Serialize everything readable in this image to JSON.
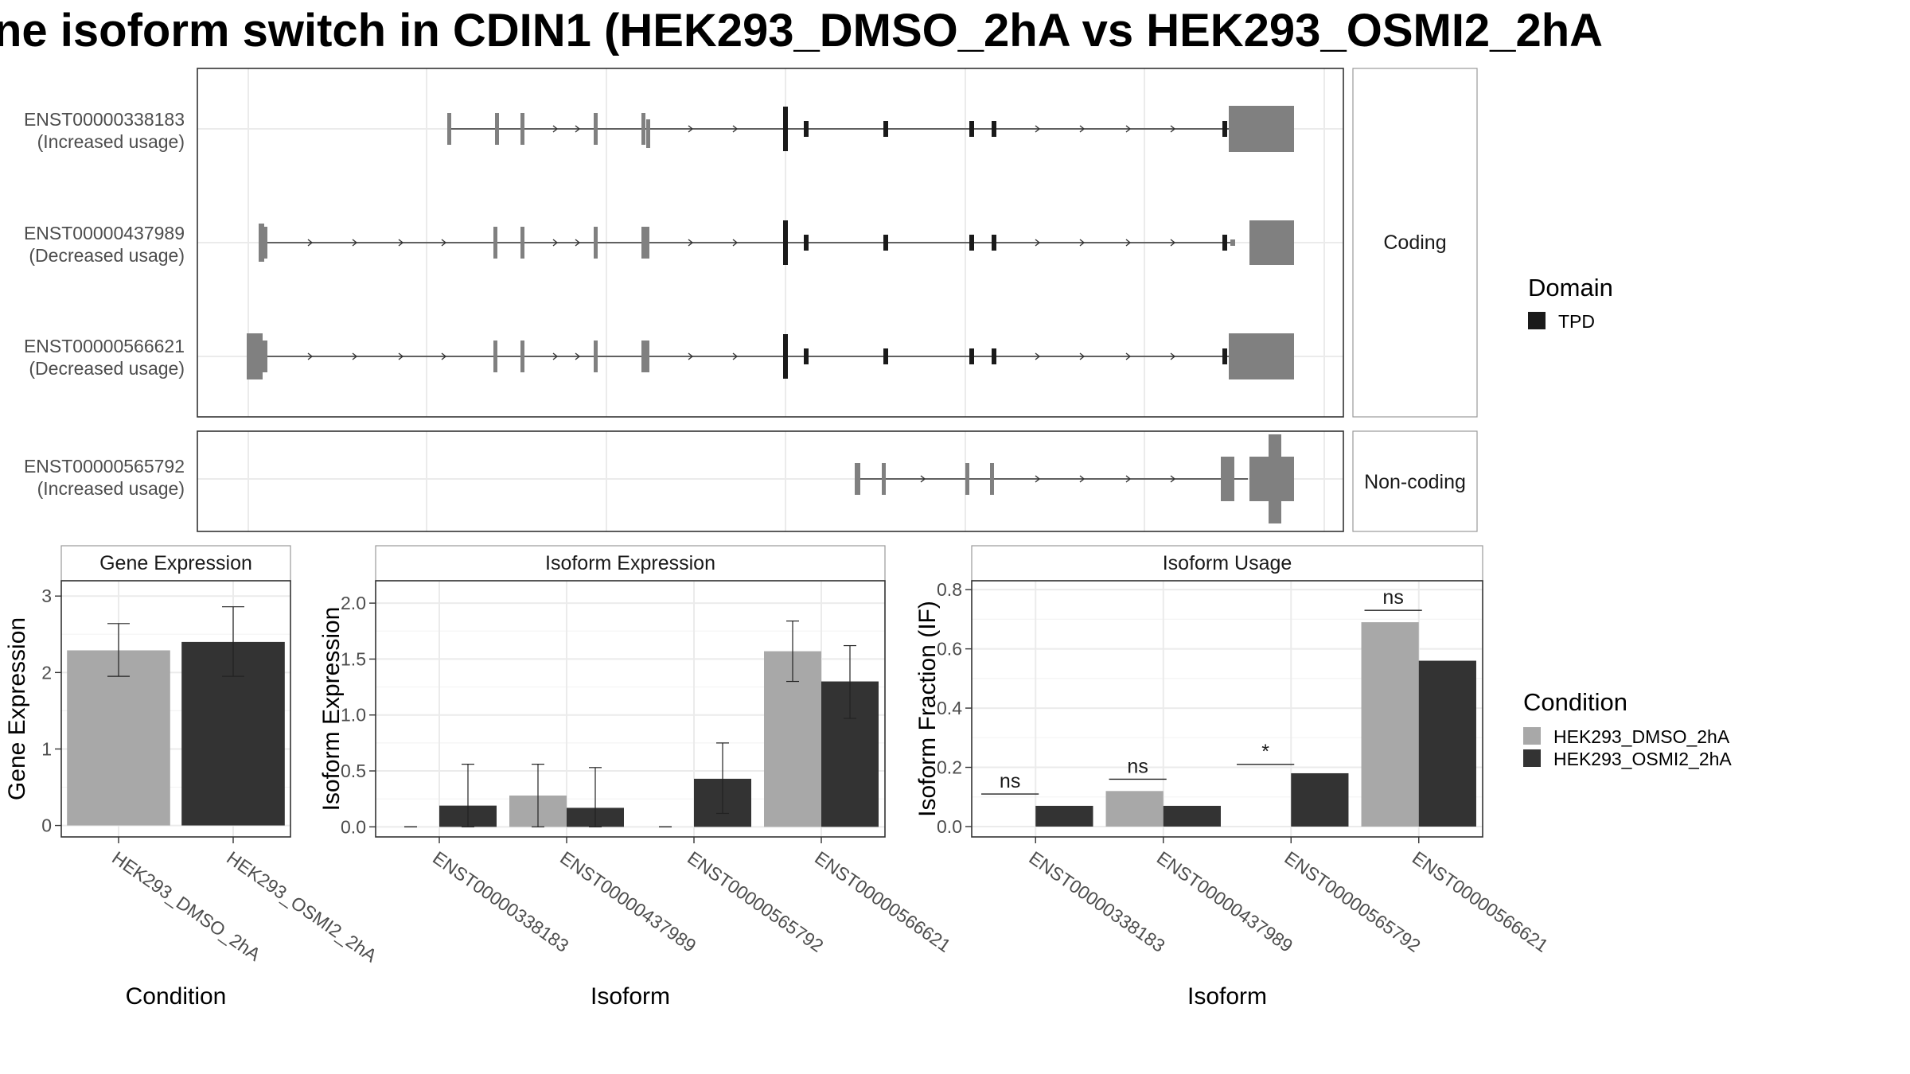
{
  "title": "ne isoform switch in CDIN1 (HEK293_DMSO_2hA vs HEK293_OSMI2_2hA",
  "structure": {
    "facets": [
      "Coding",
      "Non-coding"
    ],
    "rows": [
      {
        "id": "ENST00000338183",
        "usage": "(Increased usage)",
        "facet": "Coding"
      },
      {
        "id": "ENST00000437989",
        "usage": "(Decreased usage)",
        "facet": "Coding"
      },
      {
        "id": "ENST00000566621",
        "usage": "(Decreased usage)",
        "facet": "Coding"
      },
      {
        "id": "ENST00000565792",
        "usage": "(Increased usage)",
        "facet": "Non-coding"
      }
    ]
  },
  "legend_domain": {
    "title": "Domain",
    "items": [
      {
        "label": "TPD",
        "color": "#1a1a1a"
      }
    ]
  },
  "legend_condition": {
    "title": "Condition",
    "items": [
      {
        "label": "HEK293_DMSO_2hA",
        "color": "#a8a8a8"
      },
      {
        "label": "HEK293_OSMI2_2hA",
        "color": "#333333"
      }
    ]
  },
  "colors": {
    "exon": "#808080",
    "domain": "#1a1a1a",
    "dmso": "#a8a8a8",
    "osmi": "#333333"
  },
  "chart_data": [
    {
      "type": "bar",
      "panel": "Gene Expression",
      "title": "Gene Expression",
      "xlabel": "Condition",
      "ylabel": "Gene Expression",
      "ylim": [
        -0.15,
        3.2
      ],
      "yticks": [
        "0",
        "1",
        "2",
        "3"
      ],
      "ytick_values": [
        0,
        1,
        2,
        3
      ],
      "categories": [
        "HEK293_DMSO_2hA",
        "HEK293_OSMI2_2hA"
      ],
      "values": [
        2.29,
        2.4
      ],
      "errors": [
        [
          1.95,
          2.64
        ],
        [
          1.95,
          2.86
        ]
      ]
    },
    {
      "type": "bar",
      "panel": "Isoform Expression",
      "title": "Isoform Expression",
      "xlabel": "Isoform",
      "ylabel": "Isoform Expression",
      "ylim": [
        -0.09,
        2.2
      ],
      "yticks": [
        "0.0",
        "0.5",
        "1.0",
        "1.5",
        "2.0"
      ],
      "ytick_values": [
        0,
        0.5,
        1.0,
        1.5,
        2.0
      ],
      "categories": [
        "ENST00000338183",
        "ENST00000437989",
        "ENST00000565792",
        "ENST00000566621"
      ],
      "series": [
        {
          "name": "HEK293_DMSO_2hA",
          "values": [
            0.0,
            0.28,
            0.0,
            1.57
          ],
          "errors": [
            [
              0.0,
              0.0
            ],
            [
              0.0,
              0.56
            ],
            [
              0.0,
              0.0
            ],
            [
              1.3,
              1.84
            ]
          ]
        },
        {
          "name": "HEK293_OSMI2_2hA",
          "values": [
            0.19,
            0.17,
            0.43,
            1.3
          ],
          "errors": [
            [
              0.0,
              0.56
            ],
            [
              0.0,
              0.53
            ],
            [
              0.12,
              0.75
            ],
            [
              0.97,
              1.62
            ]
          ]
        }
      ]
    },
    {
      "type": "bar",
      "panel": "Isoform Usage",
      "title": "Isoform Usage",
      "xlabel": "Isoform",
      "ylabel": "Isoform Fraction (IF)",
      "ylim": [
        -0.035,
        0.83
      ],
      "yticks": [
        "0.0",
        "0.2",
        "0.4",
        "0.6",
        "0.8"
      ],
      "ytick_values": [
        0,
        0.2,
        0.4,
        0.6,
        0.8
      ],
      "categories": [
        "ENST00000338183",
        "ENST00000437989",
        "ENST00000565792",
        "ENST00000566621"
      ],
      "series": [
        {
          "name": "HEK293_DMSO_2hA",
          "values": [
            0.0,
            0.12,
            0.0,
            0.69
          ]
        },
        {
          "name": "HEK293_OSMI2_2hA",
          "values": [
            0.07,
            0.07,
            0.18,
            0.56
          ]
        }
      ],
      "significance": [
        {
          "label": "ns",
          "y": 0.11
        },
        {
          "label": "ns",
          "y": 0.16
        },
        {
          "label": "*",
          "y": 0.21
        },
        {
          "label": "ns",
          "y": 0.73
        }
      ]
    }
  ]
}
